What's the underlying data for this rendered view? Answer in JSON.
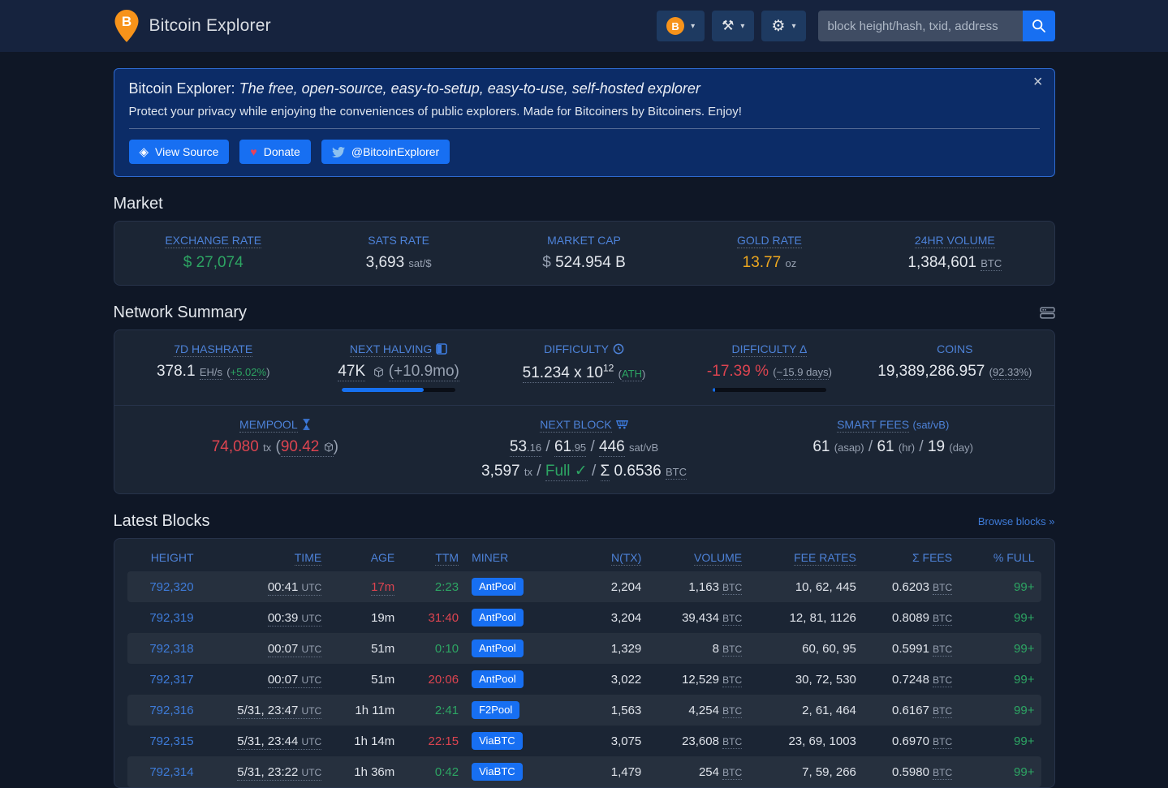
{
  "glyphs": {
    "gear": "⚙",
    "tools": "⚒",
    "heart": "♥",
    "view_source": "◈",
    "close": "×",
    "check": "✓",
    "caret": "▾"
  },
  "punct": {
    "open": "(",
    "close": ")",
    "slash": "/"
  },
  "navbar": {
    "brand": "Bitcoin Explorer",
    "coin_symbol": "B",
    "search": {
      "placeholder": "block height/hash, txid, address"
    }
  },
  "banner": {
    "title_prefix": "Bitcoin Explorer:",
    "title_em": "The free, open-source, easy-to-setup, easy-to-use, self-hosted explorer",
    "subtitle": "Protect your privacy while enjoying the conveniences of public explorers. Made for Bitcoiners by Bitcoiners. Enjoy!",
    "view_source": "View Source",
    "donate": "Donate",
    "twitter": "@BitcoinExplorer"
  },
  "market": {
    "heading": "Market",
    "stats": [
      {
        "label": "EXCHANGE RATE",
        "prefix": "$",
        "value": "27,074"
      },
      {
        "label": "SATS RATE",
        "value": "3,693",
        "suffix": "sat/$"
      },
      {
        "label": "MARKET CAP",
        "prefix": "$",
        "value": "524.954",
        "suffix": "B"
      },
      {
        "label": "GOLD RATE",
        "value": "13.77",
        "suffix": "oz"
      },
      {
        "label": "24HR VOLUME",
        "value": "1,384,601",
        "suffix": "BTC"
      }
    ]
  },
  "network_summary": {
    "heading": "Network Summary",
    "hashrate": {
      "label": "7D HASHRATE",
      "value": "378.1",
      "unit": "EH/s",
      "change": "+5.02%"
    },
    "halving": {
      "label": "NEXT HALVING",
      "blocks": "47K",
      "eta": "(+10.9mo)",
      "progress_pct": 72
    },
    "difficulty": {
      "label": "DIFFICULTY",
      "value": "51.234 x 10",
      "exponent": "12",
      "note": "ATH"
    },
    "difficulty_delta": {
      "label": "DIFFICULTY Δ",
      "value": "-17.39",
      "unit": "%",
      "eta": "~15.9 days",
      "progress_pct": 2
    },
    "coins": {
      "label": "COINS",
      "value": "19,389,286.957",
      "pct": "92.33%"
    },
    "mempool": {
      "label": "MEMPOOL",
      "count": "74,080",
      "count_unit": "tx",
      "size": "90.42"
    },
    "next_block": {
      "label": "NEXT BLOCK",
      "min_fee_int": "53",
      "min_fee_dec": ".16",
      "med_fee_int": "61",
      "med_fee_dec": ".95",
      "max_fee": "446",
      "fee_unit": "sat/vB",
      "tx_count": "3,597",
      "tx_unit": "tx",
      "fullness": "Full",
      "sigma": "Σ",
      "total_fees": "0.6536",
      "fees_unit": "BTC"
    },
    "smart_fees": {
      "label": "SMART FEES",
      "unit_note": "(sat/vB)",
      "values": [
        {
          "v": "61",
          "l": "(asap)"
        },
        {
          "v": "61",
          "l": "(hr)"
        },
        {
          "v": "19",
          "l": "(day)"
        }
      ]
    }
  },
  "latest_blocks": {
    "heading": "Latest Blocks",
    "browse_link": "Browse blocks »",
    "btc_unit": "BTC",
    "utc": "UTC",
    "columns": [
      "HEIGHT",
      "TIME",
      "AGE",
      "TTM",
      "MINER",
      "N(TX)",
      "VOLUME",
      "FEE RATES",
      "Σ FEES",
      "% FULL"
    ],
    "rows": [
      {
        "height": "792,320",
        "time": "00:41",
        "age": "17m",
        "ttm": "2:23",
        "miner": "AntPool",
        "ntx": "2,204",
        "volume": "1,163",
        "fee_rates": "10, 62, 445",
        "fees": "0.6203",
        "full": "99+"
      },
      {
        "height": "792,319",
        "time": "00:39",
        "age": "19m",
        "ttm": "31:40",
        "miner": "AntPool",
        "ntx": "3,204",
        "volume": "39,434",
        "fee_rates": "12, 81, 1126",
        "fees": "0.8089",
        "full": "99+"
      },
      {
        "height": "792,318",
        "time": "00:07",
        "age": "51m",
        "ttm": "0:10",
        "miner": "AntPool",
        "ntx": "1,329",
        "volume": "8",
        "fee_rates": "60, 60, 95",
        "fees": "0.5991",
        "full": "99+"
      },
      {
        "height": "792,317",
        "time": "00:07",
        "age": "51m",
        "ttm": "20:06",
        "miner": "AntPool",
        "ntx": "3,022",
        "volume": "12,529",
        "fee_rates": "30, 72, 530",
        "fees": "0.7248",
        "full": "99+"
      },
      {
        "height": "792,316",
        "time": "5/31, 23:47",
        "age": "1h 11m",
        "ttm": "2:41",
        "miner": "F2Pool",
        "ntx": "1,563",
        "volume": "4,254",
        "fee_rates": "2, 61, 464",
        "fees": "0.6167",
        "full": "99+"
      },
      {
        "height": "792,315",
        "time": "5/31, 23:44",
        "age": "1h 14m",
        "ttm": "22:15",
        "miner": "ViaBTC",
        "ntx": "3,075",
        "volume": "23,608",
        "fee_rates": "23, 69, 1003",
        "fees": "0.6970",
        "full": "99+"
      },
      {
        "height": "792,314",
        "time": "5/31, 23:22",
        "age": "1h 36m",
        "ttm": "0:42",
        "miner": "ViaBTC",
        "ntx": "1,479",
        "volume": "254",
        "fee_rates": "7, 59, 266",
        "fees": "0.5980",
        "full": "99+"
      }
    ]
  }
}
